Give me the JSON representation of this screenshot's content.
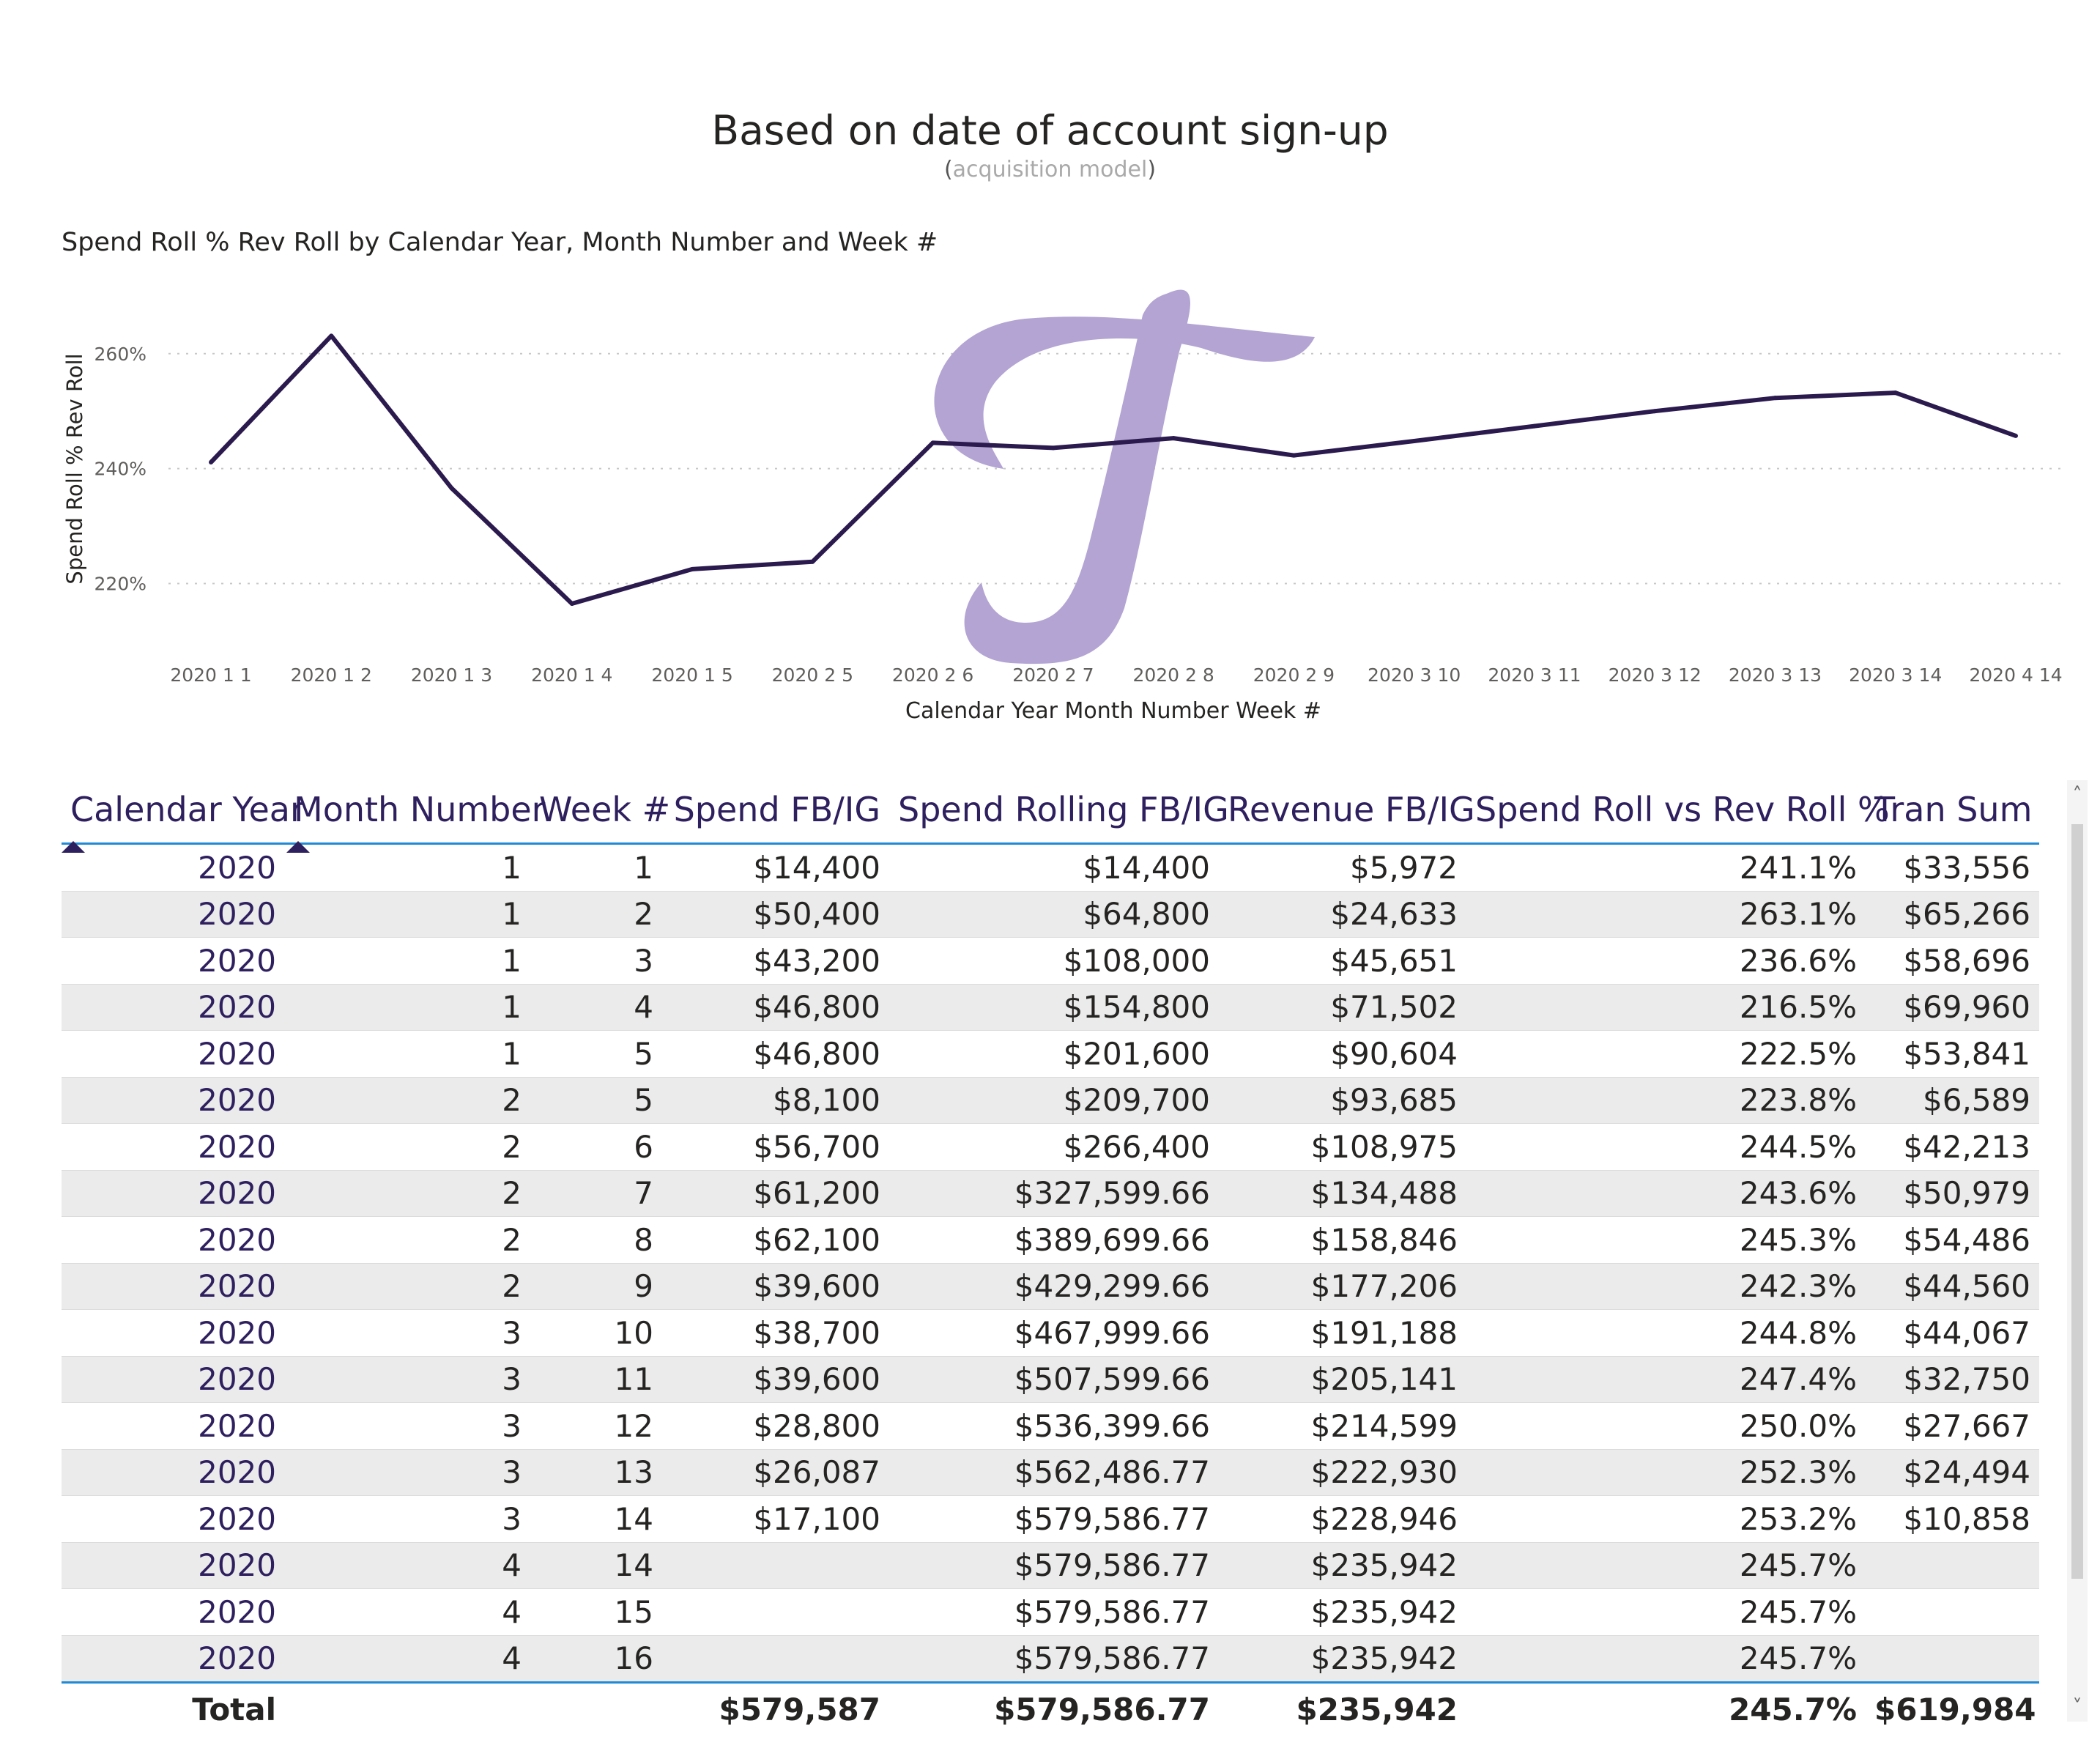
{
  "header": {
    "title": "Based on date of account sign-up",
    "subtitle_open": "(",
    "subtitle_text": "acquisition model",
    "subtitle_close": ")"
  },
  "chart_data": {
    "type": "line",
    "title": "Spend Roll % Rev Roll by Calendar Year, Month Number and Week #",
    "xlabel": "Calendar Year Month Number Week #",
    "ylabel": "Spend Roll % Rev Roll",
    "categories": [
      "2020 1 1",
      "2020 1 2",
      "2020 1 3",
      "2020 1 4",
      "2020 1 5",
      "2020 2 5",
      "2020 2 6",
      "2020 2 7",
      "2020 2 8",
      "2020 2 9",
      "2020 3 10",
      "2020 3 11",
      "2020 3 12",
      "2020 3 13",
      "2020 3 14",
      "2020 4 14"
    ],
    "series": [
      {
        "values": [
          241.1,
          263.1,
          236.6,
          216.5,
          222.5,
          223.8,
          244.5,
          243.6,
          245.3,
          242.3,
          244.8,
          247.4,
          250.0,
          252.3,
          253.2,
          245.7
        ],
        "color": "#2b1a4d"
      }
    ],
    "yticks": [
      "220%",
      "240%",
      "260%"
    ],
    "ytick_values": [
      220,
      240,
      260
    ],
    "ylim": [
      210,
      268
    ],
    "grid": true
  },
  "watermark": {
    "color": "#b3a4d3",
    "icon": "script-letter-f-logo"
  },
  "table": {
    "headers": [
      "Calendar Year",
      "Month Number",
      "Week #",
      "Spend FB/IG",
      "Spend Rolling FB/IG",
      "Revenue FB/IG",
      "Spend Roll vs Rev Roll %",
      "Tran Sum"
    ],
    "rows": [
      [
        "2020",
        "1",
        "1",
        "$14,400",
        "$14,400",
        "$5,972",
        "241.1%",
        "$33,556"
      ],
      [
        "2020",
        "1",
        "2",
        "$50,400",
        "$64,800",
        "$24,633",
        "263.1%",
        "$65,266"
      ],
      [
        "2020",
        "1",
        "3",
        "$43,200",
        "$108,000",
        "$45,651",
        "236.6%",
        "$58,696"
      ],
      [
        "2020",
        "1",
        "4",
        "$46,800",
        "$154,800",
        "$71,502",
        "216.5%",
        "$69,960"
      ],
      [
        "2020",
        "1",
        "5",
        "$46,800",
        "$201,600",
        "$90,604",
        "222.5%",
        "$53,841"
      ],
      [
        "2020",
        "2",
        "5",
        "$8,100",
        "$209,700",
        "$93,685",
        "223.8%",
        "$6,589"
      ],
      [
        "2020",
        "2",
        "6",
        "$56,700",
        "$266,400",
        "$108,975",
        "244.5%",
        "$42,213"
      ],
      [
        "2020",
        "2",
        "7",
        "$61,200",
        "$327,599.66",
        "$134,488",
        "243.6%",
        "$50,979"
      ],
      [
        "2020",
        "2",
        "8",
        "$62,100",
        "$389,699.66",
        "$158,846",
        "245.3%",
        "$54,486"
      ],
      [
        "2020",
        "2",
        "9",
        "$39,600",
        "$429,299.66",
        "$177,206",
        "242.3%",
        "$44,560"
      ],
      [
        "2020",
        "3",
        "10",
        "$38,700",
        "$467,999.66",
        "$191,188",
        "244.8%",
        "$44,067"
      ],
      [
        "2020",
        "3",
        "11",
        "$39,600",
        "$507,599.66",
        "$205,141",
        "247.4%",
        "$32,750"
      ],
      [
        "2020",
        "3",
        "12",
        "$28,800",
        "$536,399.66",
        "$214,599",
        "250.0%",
        "$27,667"
      ],
      [
        "2020",
        "3",
        "13",
        "$26,087",
        "$562,486.77",
        "$222,930",
        "252.3%",
        "$24,494"
      ],
      [
        "2020",
        "3",
        "14",
        "$17,100",
        "$579,586.77",
        "$228,946",
        "253.2%",
        "$10,858"
      ],
      [
        "2020",
        "4",
        "14",
        "",
        "$579,586.77",
        "$235,942",
        "245.7%",
        ""
      ],
      [
        "2020",
        "4",
        "15",
        "",
        "$579,586.77",
        "$235,942",
        "245.7%",
        ""
      ],
      [
        "2020",
        "4",
        "16",
        "",
        "$579,586.77",
        "$235,942",
        "245.7%",
        ""
      ]
    ],
    "total": [
      "Total",
      "",
      "",
      "$579,587",
      "$579,586.77",
      "$235,942",
      "245.7%",
      "$619,984"
    ],
    "colors": {
      "header_text": "#2e1f5e",
      "accent_rule": "#1f8ad6",
      "band": "#ebebeb"
    }
  },
  "scrollbar": {
    "up_icon": "chevron-up-icon",
    "down_icon": "chevron-down-icon",
    "up_glyph": "˄",
    "down_glyph": "˅"
  }
}
